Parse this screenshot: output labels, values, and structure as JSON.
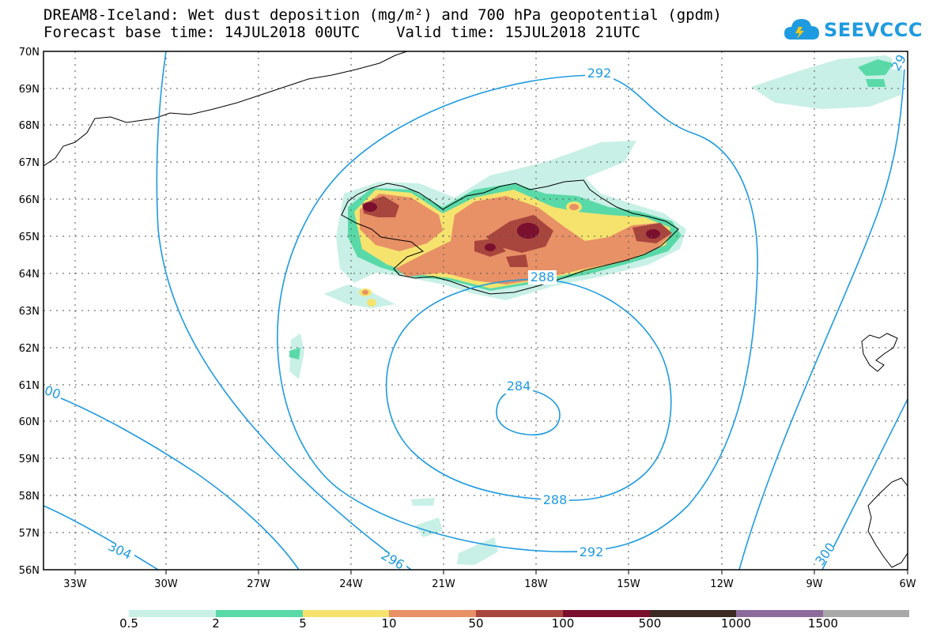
{
  "header": {
    "title_line1": "DREAM8-Iceland: Wet dust deposition (mg/m²) and 700 hPa geopotential (gpdm)",
    "title_line2": "Forecast base time: 14JUL2018 00UTC    Valid time: 15JUL2018 21UTC"
  },
  "logo": {
    "text": "SEEVCCC",
    "color": "#1e9be0",
    "icon": "cloud-icon"
  },
  "axes": {
    "lat_labels": [
      "70N",
      "69N",
      "68N",
      "67N",
      "66N",
      "65N",
      "64N",
      "63N",
      "62N",
      "61N",
      "60N",
      "59N",
      "58N",
      "57N",
      "56N"
    ],
    "lon_labels": [
      "33W",
      "30W",
      "27W",
      "24W",
      "21W",
      "18W",
      "15W",
      "12W",
      "9W",
      "6W"
    ]
  },
  "contours": {
    "color": "#1e9be0",
    "labels": [
      "292",
      "288",
      "284",
      "288",
      "292",
      "296",
      "304",
      "300",
      "00",
      "29"
    ]
  },
  "legend": {
    "thresholds": [
      "0.5",
      "2",
      "5",
      "10",
      "50",
      "100",
      "500",
      "1000",
      "1500"
    ],
    "colors": [
      "#c8f0e6",
      "#5ad9a8",
      "#f5e36e",
      "#e89066",
      "#a8463e",
      "#7a0f2e",
      "#3a2a22",
      "#8d6a9c",
      "#a8a8a8"
    ]
  }
}
